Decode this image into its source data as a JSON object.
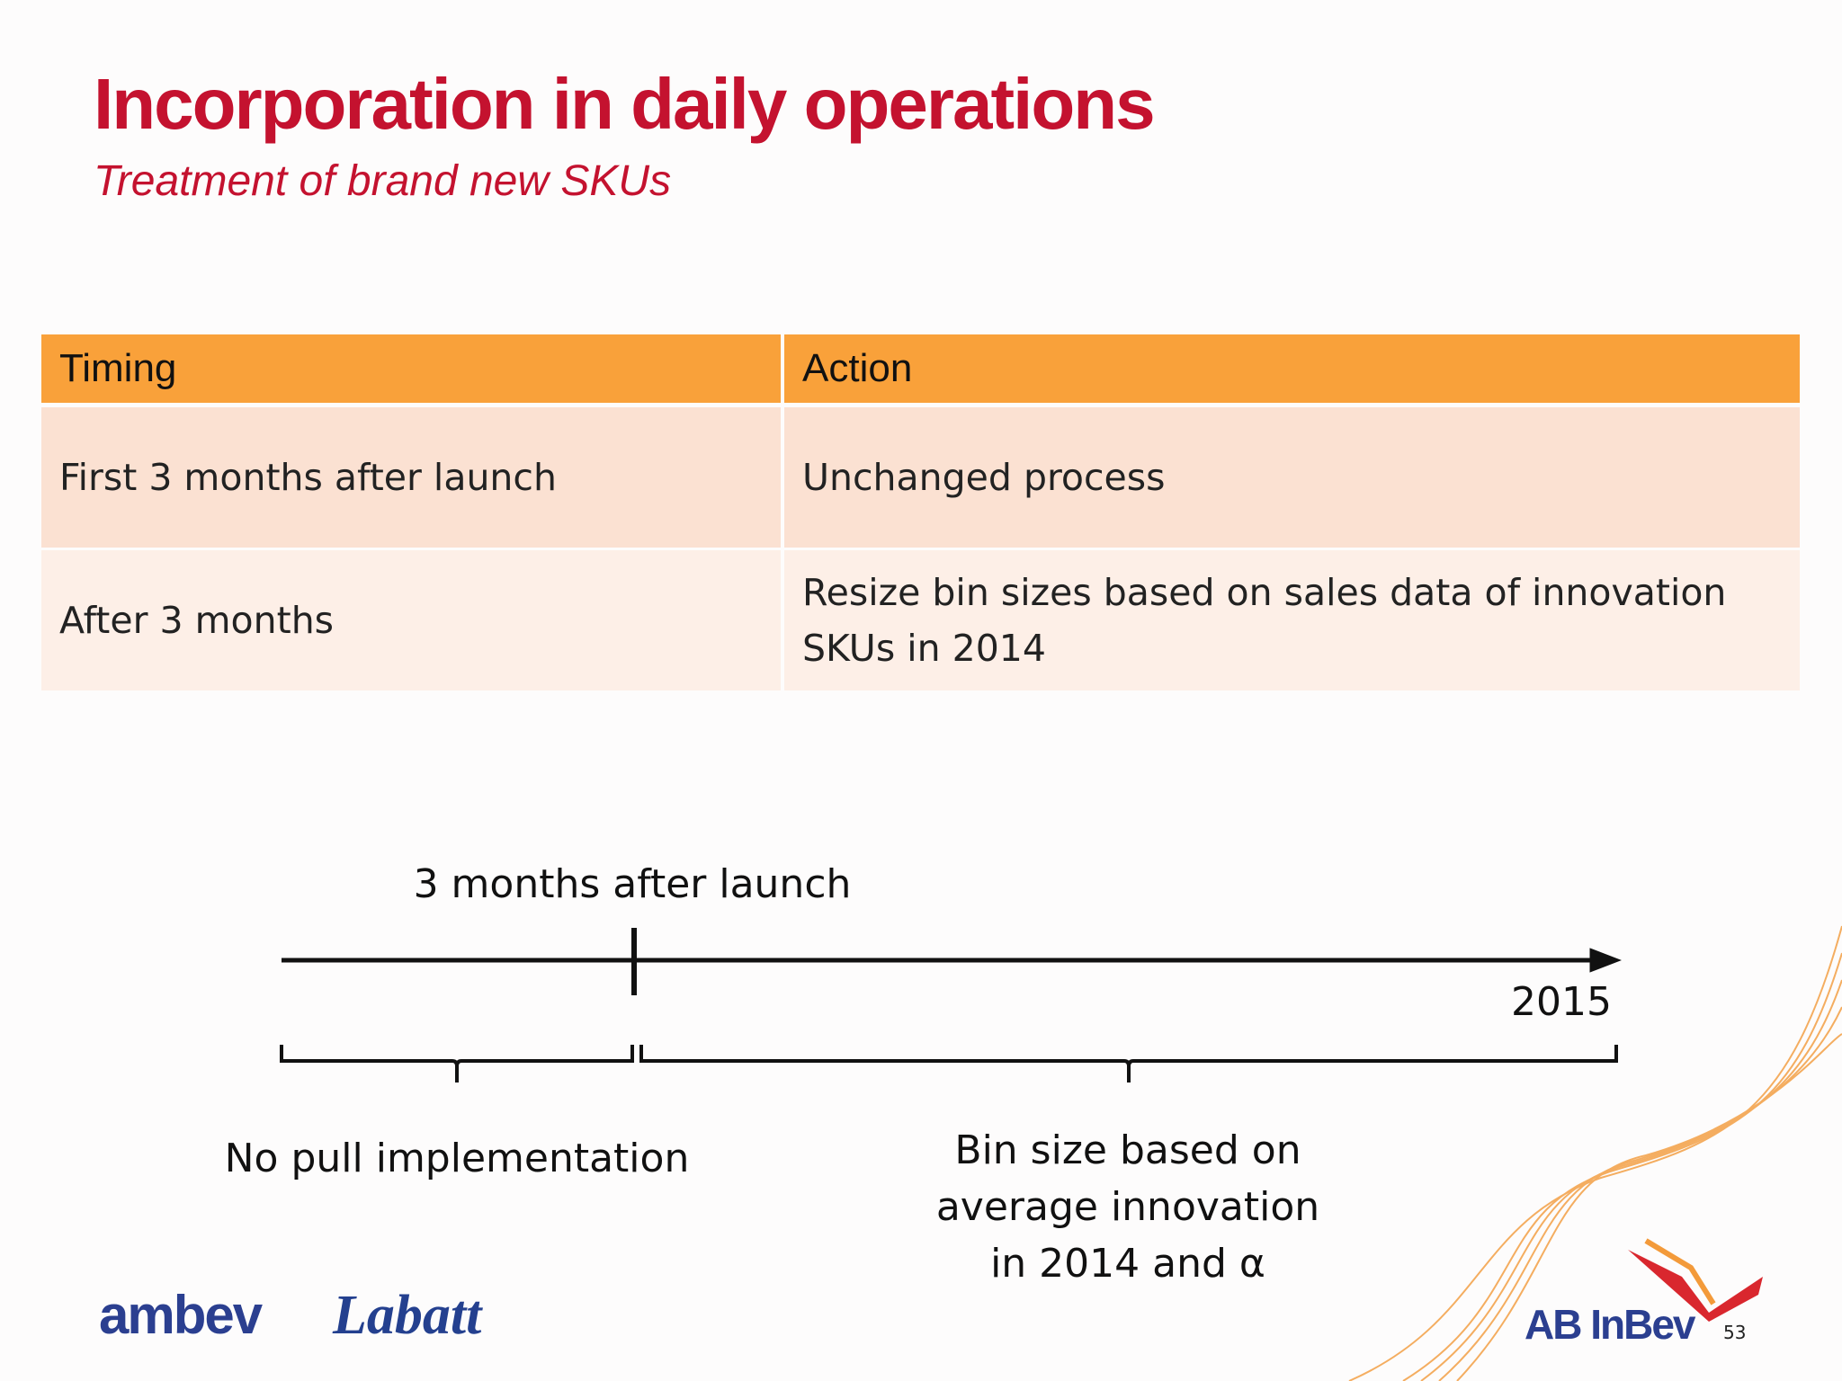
{
  "header": {
    "title": "Incorporation in daily operations",
    "subtitle": "Treatment of brand new SKUs"
  },
  "table": {
    "columns": [
      "Timing",
      "Action"
    ],
    "rows": [
      [
        "First 3 months after launch",
        "Unchanged process"
      ],
      [
        "After 3 months",
        "Resize bin sizes based on sales data of innovation SKUs in 2014"
      ]
    ]
  },
  "timeline": {
    "marker_label": "3 months after launch",
    "end_label": "2015",
    "segments": [
      "No pull implementation",
      "Bin size based on average innovation in 2014 and α"
    ]
  },
  "footer": {
    "logos": [
      "ambev",
      "Labatt",
      "AB InBev"
    ],
    "page_number": "53"
  }
}
